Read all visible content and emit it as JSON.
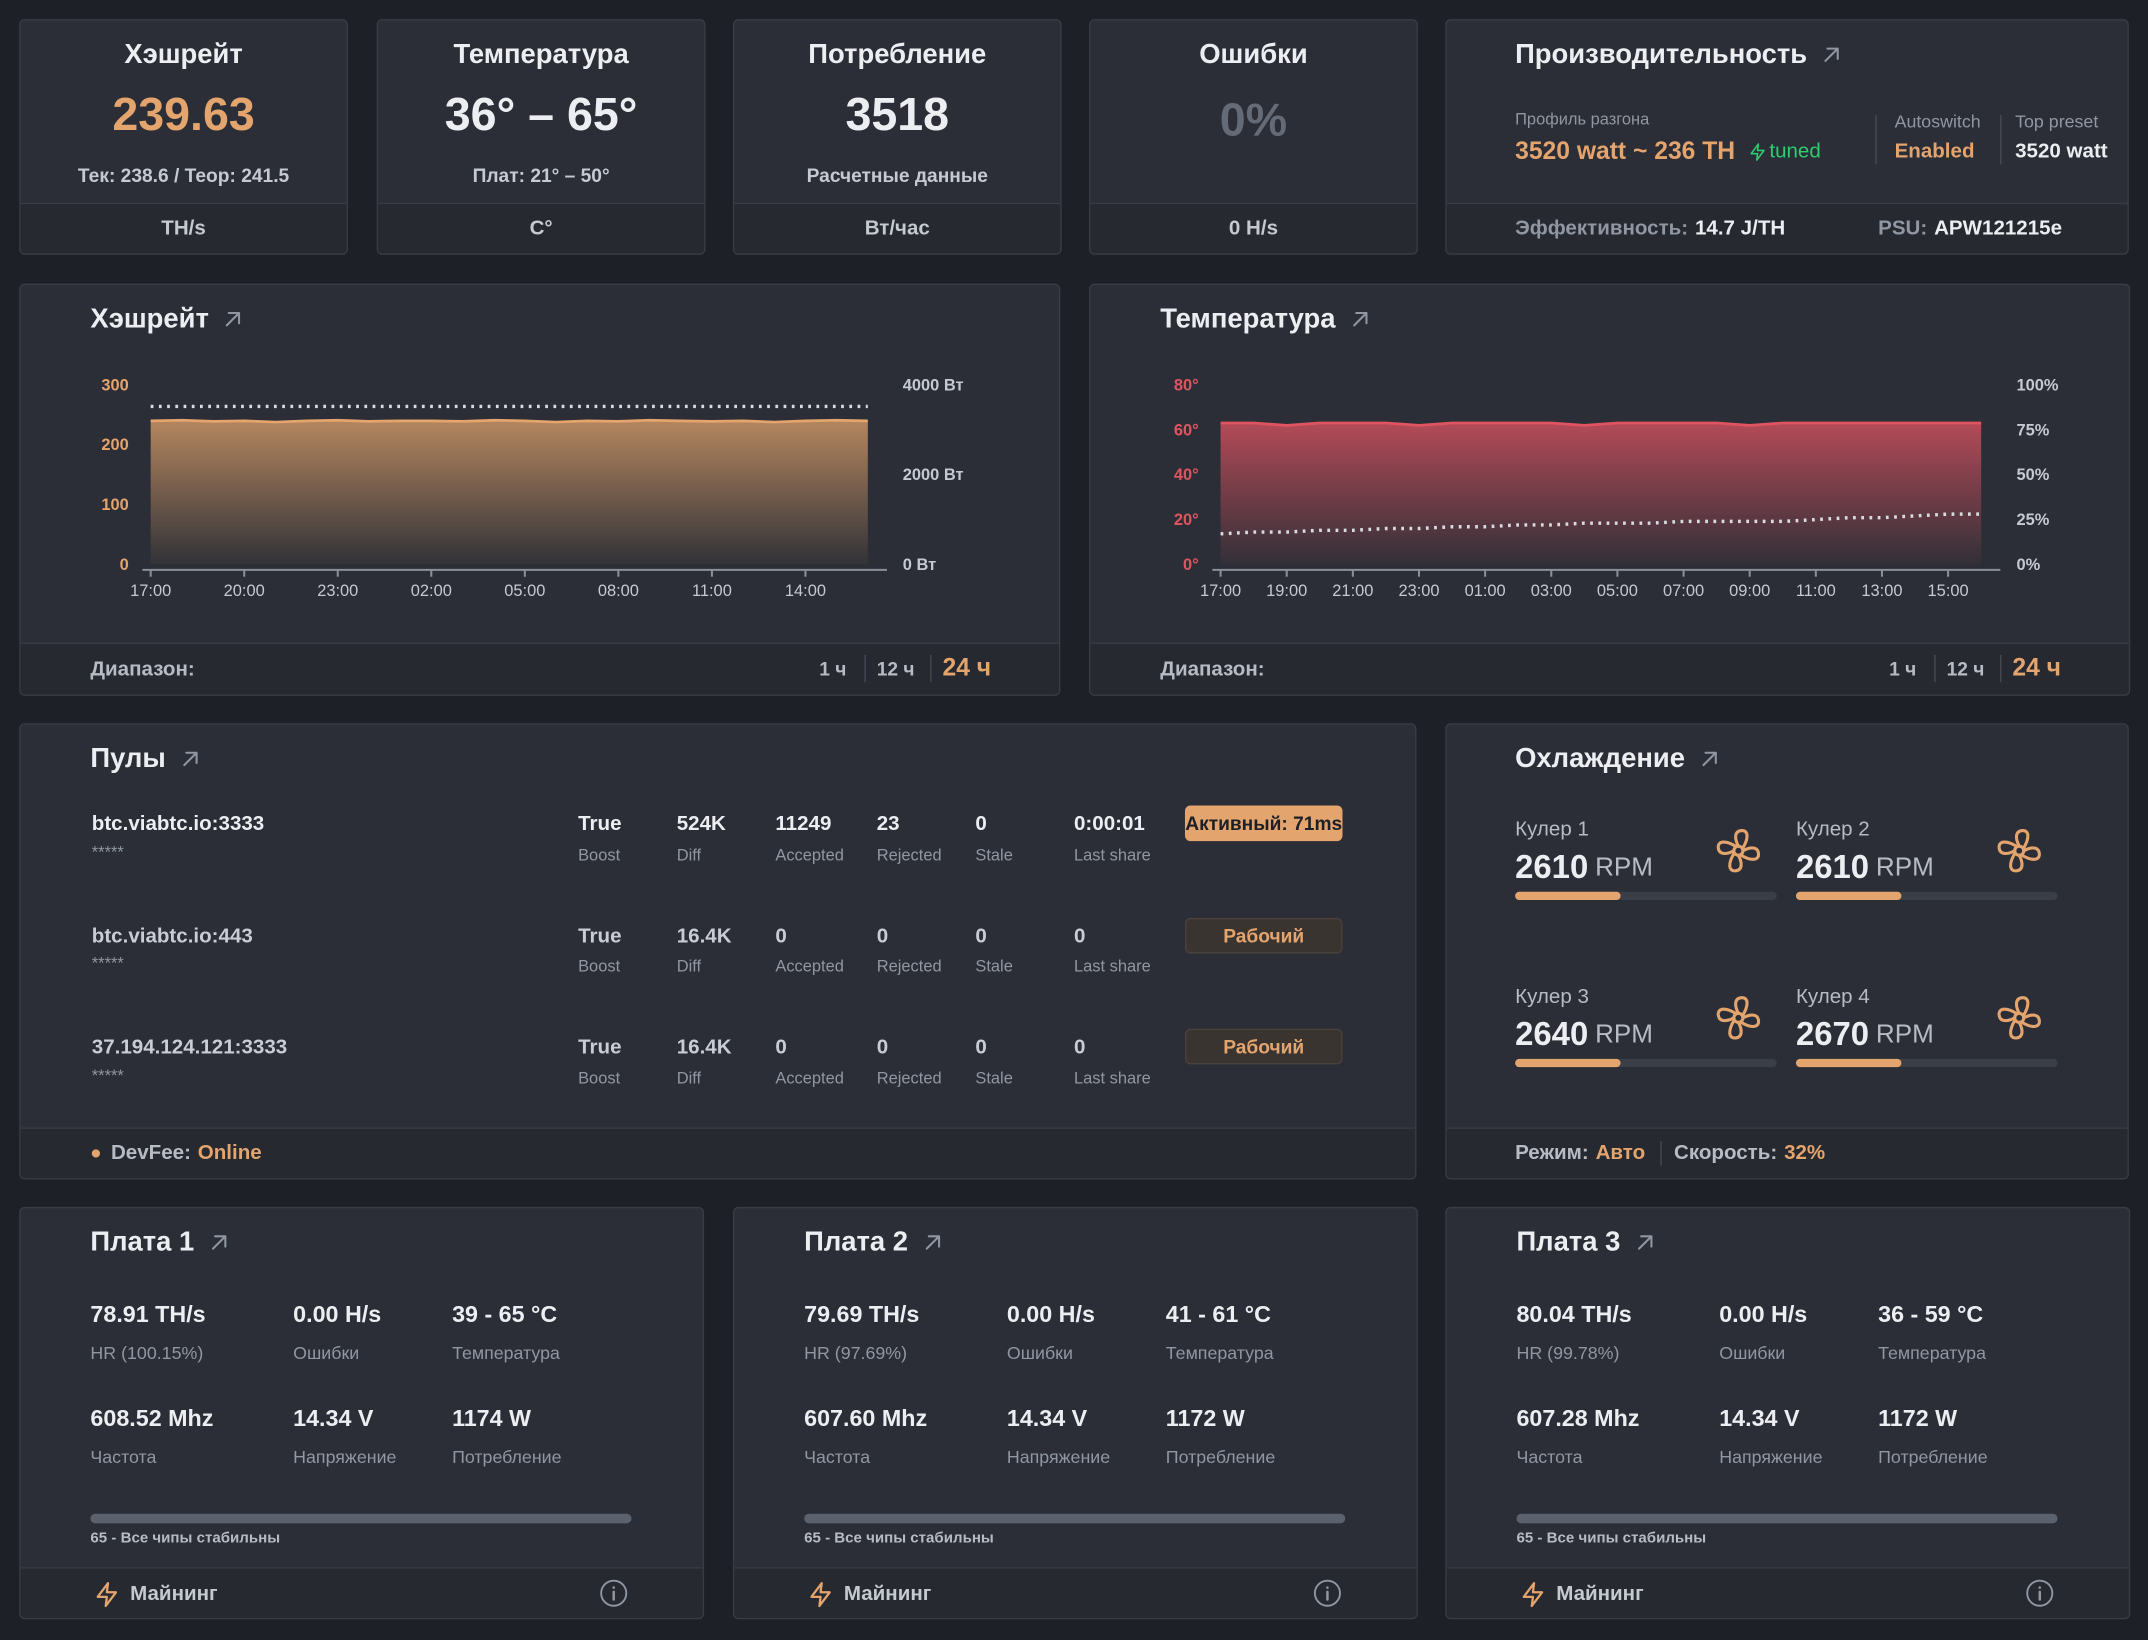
{
  "stats": [
    {
      "title": "Хэшрейт",
      "value": "239.63",
      "sub": "Тек: 238.6 / Теор: 241.5",
      "unit": "TH/s"
    },
    {
      "title": "Температура",
      "value": "36° – 65°",
      "sub": "Плат: 21° – 50°",
      "unit": "C°"
    },
    {
      "title": "Потребление",
      "value": "3518",
      "sub": "Расчетные данные",
      "unit": "Вт/час"
    },
    {
      "title": "Ошибки",
      "value": "0%",
      "unit": "0 H/s"
    }
  ],
  "performance": {
    "title": "Производительность",
    "profile_label": "Профиль разгона",
    "profile": "3520 watt ~ 236 TH",
    "tuned": "tuned",
    "autoswitch_label": "Autoswitch",
    "autoswitch": "Enabled",
    "preset_label": "Top preset",
    "preset": "3520 watt",
    "efficiency_label": "Эффективность:",
    "efficiency": "14.7 J/TH",
    "psu_label": "PSU:",
    "psu": "APW121215e"
  },
  "chart_data": [
    {
      "type": "line",
      "title": "Хэшрейт",
      "categories": [
        "17:00",
        null,
        null,
        "20:00",
        null,
        null,
        "23:00",
        null,
        null,
        "02:00",
        null,
        null,
        "05:00",
        null,
        null,
        "08:00",
        null,
        null,
        "11:00",
        null,
        null,
        "14:00",
        null,
        null
      ],
      "series": [
        {
          "color": "#e3a46d",
          "fill": true,
          "values": [
            240,
            241,
            239,
            240,
            238,
            240,
            241,
            239,
            240,
            240,
            239,
            241,
            240,
            238,
            240,
            239,
            241,
            240,
            239,
            240,
            238,
            240,
            241,
            240
          ]
        },
        {
          "color": "#d8dbe0",
          "dash": true,
          "axis": "y2",
          "values": [
            3520,
            3520,
            3520,
            3520,
            3520,
            3520,
            3520,
            3520,
            3520,
            3520,
            3520,
            3520,
            3520,
            3520,
            3520,
            3520,
            3520,
            3520,
            3520,
            3520,
            3520,
            3520,
            3520,
            3520
          ]
        }
      ],
      "ylim": [
        0,
        300
      ],
      "yticks": [
        0,
        100,
        200,
        300
      ],
      "y2lim": [
        0,
        4000
      ],
      "y2ticks": [
        {
          "value": 0,
          "label": "0 Вт"
        },
        {
          "value": 2000,
          "label": "2000 Вт"
        },
        {
          "value": 4000,
          "label": "4000 Вт"
        }
      ],
      "range_label": "Диапазон:",
      "ranges": [
        "1 ч",
        "12 ч",
        "24 ч"
      ]
    },
    {
      "type": "line",
      "title": "Температура",
      "categories": [
        "17:00",
        null,
        "19:00",
        null,
        "21:00",
        null,
        "23:00",
        null,
        "01:00",
        null,
        "03:00",
        null,
        "05:00",
        null,
        "07:00",
        null,
        "09:00",
        null,
        "11:00",
        null,
        "13:00",
        null,
        "15:00",
        null
      ],
      "series": [
        {
          "color": "#e05462",
          "fill": true,
          "values": [
            63,
            63,
            62,
            63,
            63,
            63,
            62,
            63,
            63,
            63,
            63,
            62,
            63,
            63,
            63,
            63,
            62,
            63,
            63,
            63,
            63,
            63,
            63,
            63
          ]
        },
        {
          "color": "#d8dbe0",
          "dash": true,
          "axis": "y2",
          "values": [
            17,
            18,
            18,
            19,
            19,
            20,
            20,
            21,
            21,
            22,
            22,
            23,
            23,
            23,
            24,
            24,
            24,
            24,
            25,
            26,
            26,
            27,
            28,
            28
          ]
        }
      ],
      "ylim": [
        0,
        80
      ],
      "yticks": [
        {
          "value": 0,
          "label": "0°"
        },
        {
          "value": 20,
          "label": "20°"
        },
        {
          "value": 40,
          "label": "40°"
        },
        {
          "value": 60,
          "label": "60°"
        },
        {
          "value": 80,
          "label": "80°"
        }
      ],
      "y2lim": [
        0,
        100
      ],
      "y2ticks": [
        {
          "value": 0,
          "label": "0%"
        },
        {
          "value": 25,
          "label": "25%"
        },
        {
          "value": 50,
          "label": "50%"
        },
        {
          "value": 75,
          "label": "75%"
        },
        {
          "value": 100,
          "label": "100%"
        }
      ],
      "range_label": "Диапазон:",
      "ranges": [
        "1 ч",
        "12 ч",
        "24 ч"
      ]
    }
  ],
  "pools": {
    "title": "Пулы",
    "columns": [
      "Boost",
      "Diff",
      "Accepted",
      "Rejected",
      "Stale",
      "Last share"
    ],
    "rows": [
      {
        "url": "btc.viabtc.io:3333",
        "user": "*****",
        "values": [
          "True",
          "524K",
          11249,
          23,
          0,
          "0:00:01"
        ],
        "status": "Активный: 71ms",
        "active": true
      },
      {
        "url": "btc.viabtc.io:443",
        "user": "*****",
        "values": [
          "True",
          "16.4K",
          0,
          0,
          0,
          0
        ],
        "status": "Рабочий",
        "active": false
      },
      {
        "url": "37.194.124.121:3333",
        "user": "*****",
        "values": [
          "True",
          "16.4K",
          0,
          0,
          0,
          0
        ],
        "status": "Рабочий",
        "active": false
      }
    ],
    "devfee_label": "DevFee:",
    "devfee": "Online"
  },
  "cooling": {
    "title": "Охлаждение",
    "unit": "RPM",
    "coolers": [
      {
        "name": "Кулер 1",
        "rpm": 2610
      },
      {
        "name": "Кулер 2",
        "rpm": 2610
      },
      {
        "name": "Кулер 3",
        "rpm": 2640
      },
      {
        "name": "Кулер 4",
        "rpm": 2670
      }
    ],
    "mode_label": "Режим:",
    "mode": "Авто",
    "speed_label": "Скорость:",
    "speed": "32%"
  },
  "boards": [
    {
      "title": "Плата 1",
      "metrics": [
        {
          "value": "78.91 TH/s",
          "label": "HR (100.15%)"
        },
        {
          "value": "0.00 H/s",
          "label": "Ошибки"
        },
        {
          "value": "39 - 65 °C",
          "label": "Температура"
        },
        {
          "value": "608.52 Mhz",
          "label": "Частота"
        },
        {
          "value": "14.34 V",
          "label": "Напряжение"
        },
        {
          "value": "1174 W",
          "label": "Потребление"
        }
      ],
      "chips": "65 - Все чипы стабильны",
      "status": "Майнинг"
    },
    {
      "title": "Плата 2",
      "metrics": [
        {
          "value": "79.69 TH/s",
          "label": "HR (97.69%)"
        },
        {
          "value": "0.00 H/s",
          "label": "Ошибки"
        },
        {
          "value": "41 - 61 °C",
          "label": "Температура"
        },
        {
          "value": "607.60 Mhz",
          "label": "Частота"
        },
        {
          "value": "14.34 V",
          "label": "Напряжение"
        },
        {
          "value": "1172 W",
          "label": "Потребление"
        }
      ],
      "chips": "65 - Все чипы стабильны",
      "status": "Майнинг"
    },
    {
      "title": "Плата 3",
      "metrics": [
        {
          "value": "80.04 TH/s",
          "label": "HR (99.78%)"
        },
        {
          "value": "0.00 H/s",
          "label": "Ошибки"
        },
        {
          "value": "36 - 59 °C",
          "label": "Температура"
        },
        {
          "value": "607.28 Mhz",
          "label": "Частота"
        },
        {
          "value": "14.34 V",
          "label": "Напряжение"
        },
        {
          "value": "1172 W",
          "label": "Потребление"
        }
      ],
      "chips": "65 - Все чипы стабильны",
      "status": "Майнинг"
    }
  ]
}
